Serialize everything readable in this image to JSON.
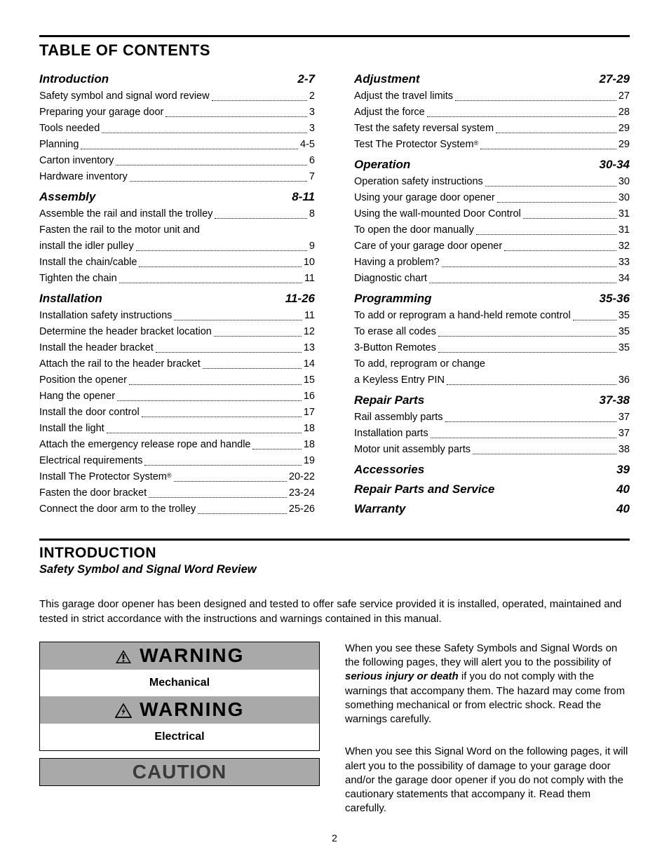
{
  "colors": {
    "text": "#000000",
    "background": "#ffffff",
    "banner_bg": "#a9a9a9",
    "caution_text": "#3a3a3a"
  },
  "toc": {
    "title": "TABLE OF CONTENTS",
    "left_sections": [
      {
        "title": "Introduction",
        "pages": "2-7",
        "items": [
          {
            "label": "Safety symbol and signal word review",
            "pg": "2"
          },
          {
            "label": "Preparing your garage door",
            "pg": "3"
          },
          {
            "label": "Tools needed",
            "pg": "3"
          },
          {
            "label": "Planning",
            "pg": "4-5"
          },
          {
            "label": "Carton inventory",
            "pg": "6"
          },
          {
            "label": "Hardware inventory",
            "pg": "7"
          }
        ]
      },
      {
        "title": "Assembly",
        "pages": "8-11",
        "items": [
          {
            "label": "Assemble the rail and install the trolley",
            "pg": "8"
          },
          {
            "label_pre": "Fasten the rail to the motor unit and",
            "label": "install the idler pulley",
            "pg": "9"
          },
          {
            "label": "Install the chain/cable",
            "pg": "10"
          },
          {
            "label": "Tighten the chain",
            "pg": "11"
          }
        ]
      },
      {
        "title": "Installation",
        "pages": "11-26",
        "items": [
          {
            "label": "Installation safety instructions",
            "pg": "11"
          },
          {
            "label": "Determine the header bracket location",
            "pg": "12"
          },
          {
            "label": "Install the header bracket",
            "pg": "13"
          },
          {
            "label": "Attach the rail to the header bracket",
            "pg": "14"
          },
          {
            "label": "Position the opener",
            "pg": "15"
          },
          {
            "label": "Hang the opener",
            "pg": "16"
          },
          {
            "label": "Install the door control",
            "pg": "17"
          },
          {
            "label": "Install the light",
            "pg": "18"
          },
          {
            "label": "Attach the emergency release rope and handle",
            "pg": "18"
          },
          {
            "label": "Electrical requirements",
            "pg": "19"
          },
          {
            "label": "Install The Protector System",
            "regmark": true,
            "pg": "20-22"
          },
          {
            "label": "Fasten the door bracket",
            "pg": "23-24"
          },
          {
            "label": "Connect the door arm to the trolley",
            "pg": "25-26"
          }
        ]
      }
    ],
    "right_sections": [
      {
        "title": "Adjustment",
        "pages": "27-29",
        "items": [
          {
            "label": "Adjust the travel limits",
            "pg": "27"
          },
          {
            "label": "Adjust the force",
            "pg": "28"
          },
          {
            "label": "Test the safety reversal system",
            "pg": "29"
          },
          {
            "label": "Test The Protector System",
            "regmark": true,
            "pg": "29"
          }
        ]
      },
      {
        "title": "Operation",
        "pages": "30-34",
        "items": [
          {
            "label": "Operation safety instructions",
            "pg": "30"
          },
          {
            "label": "Using your garage door opener",
            "pg": "30"
          },
          {
            "label": "Using the wall-mounted Door Control",
            "pg": "31"
          },
          {
            "label": "To open the door manually",
            "pg": "31"
          },
          {
            "label": "Care of your garage door opener",
            "pg": "32"
          },
          {
            "label": "Having a problem?",
            "pg": "33"
          },
          {
            "label": "Diagnostic chart",
            "pg": "34"
          }
        ]
      },
      {
        "title": "Programming",
        "pages": "35-36",
        "items": [
          {
            "label": "To add or reprogram a hand-held remote control",
            "pg": "35"
          },
          {
            "label": "To erase all codes",
            "pg": "35"
          },
          {
            "label": "3-Button Remotes",
            "pg": "35"
          },
          {
            "label_pre": "To add, reprogram or change",
            "label": "a Keyless Entry PIN",
            "pg": "36"
          }
        ]
      },
      {
        "title": "Repair Parts",
        "pages": "37-38",
        "items": [
          {
            "label": "Rail assembly parts",
            "pg": "37"
          },
          {
            "label": "Installation parts",
            "pg": "37"
          },
          {
            "label": "Motor unit assembly parts",
            "pg": "38"
          }
        ]
      },
      {
        "title": "Accessories",
        "pages": "39",
        "items": []
      },
      {
        "title": "Repair Parts and Service",
        "pages": "40",
        "items": []
      },
      {
        "title": "Warranty",
        "pages": "40",
        "items": []
      }
    ]
  },
  "intro": {
    "heading": "INTRODUCTION",
    "subheading": "Safety Symbol and Signal Word Review",
    "body": "This garage door opener has been designed and tested to offer safe service provided it is installed, operated, maintained and tested in strict accordance with the instructions and warnings contained in this manual.",
    "warning_word": "WARNING",
    "caution_word": "CAUTION",
    "mechanical_label": "Mechanical",
    "electrical_label": "Electrical",
    "right_para1_a": "When you see these Safety Symbols and Signal Words on the following pages, they will alert you to the possibility of ",
    "right_para1_strong": "serious injury or death",
    "right_para1_b": " if you do not comply with the warnings that accompany them. The hazard may come from something mechanical or from electric shock. Read the warnings carefully.",
    "right_para2": "When you see this Signal Word on the following pages, it will alert you to the possibility of damage to your garage door and/or the garage door opener if you do not comply with the cautionary statements that accompany it. Read them carefully."
  },
  "page_number": "2"
}
